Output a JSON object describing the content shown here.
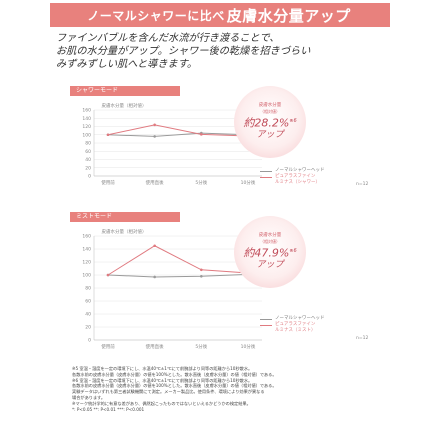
{
  "banner": {
    "prefix": "ノーマルシャワーに比べ",
    "emphasis": "皮膚水分量アップ"
  },
  "intro": {
    "lines": [
      "ファインバブルを含んだ水流が行き渡ることで、",
      "お肌の水分量がアップ。シャワー後の乾燥を招きづらい",
      "みずみずしい肌へと導きます。"
    ]
  },
  "sections": [
    {
      "tag": "シャワーモード",
      "badge": {
        "line1": "皮膚水分量",
        "line2": "（相対値）",
        "percent": "約28.2%",
        "mark": "※6",
        "suffix": "アップ"
      },
      "legend": [
        "ノーマルシャワーヘッド",
        "ピュアラスファイン",
        "ルミナス（シャワー）"
      ],
      "n_label": "n=12"
    },
    {
      "tag": "ミストモード",
      "badge": {
        "line1": "皮膚水分量",
        "line2": "（相対値）",
        "percent": "約47.9%",
        "mark": "※6",
        "suffix": "アップ"
      },
      "legend": [
        "ノーマルシャワーヘッド",
        "ピュアラスファイン",
        "ルミナス（ミスト）"
      ],
      "n_label": "n=12"
    }
  ],
  "chart_data": [
    {
      "type": "line",
      "title": "",
      "ylabel": "皮膚水分量（相対値）",
      "categories": [
        "使用前",
        "使用直後",
        "5分後",
        "10分後"
      ],
      "ylim": [
        0,
        160
      ],
      "yticks": [
        0,
        20,
        40,
        60,
        80,
        100,
        120,
        140,
        160
      ],
      "series": [
        {
          "name": "ノーマルシャワーヘッド",
          "values": [
            100,
            96,
            104,
            100
          ],
          "color": "#9a9a9a"
        },
        {
          "name": "ピュアラスファイン ルミナス（シャワー）",
          "values": [
            100,
            124,
            101,
            97
          ],
          "color": "#e07a80"
        }
      ]
    },
    {
      "type": "line",
      "title": "",
      "ylabel": "皮膚水分量（相対値）",
      "categories": [
        "使用前",
        "使用直後",
        "5分後",
        "10分後"
      ],
      "ylim": [
        0,
        160
      ],
      "yticks": [
        0,
        20,
        40,
        60,
        80,
        100,
        120,
        140,
        160
      ],
      "series": [
        {
          "name": "ノーマルシャワーヘッド",
          "values": [
            100,
            97,
            98,
            101
          ],
          "color": "#9a9a9a"
        },
        {
          "name": "ピュアラスファイン ルミナス（ミスト）",
          "values": [
            100,
            145,
            108,
            103
          ],
          "color": "#e07a80"
        }
      ]
    }
  ],
  "notes": [
    "※5 室温・湿度を一定の環境下にし、水温40℃±1℃にて前腕部より同等の距離から10秒散水。",
    "各散水前の皮膚水分量（皮膚水分量）の値を100%とした。散水直後（皮膚水分量）の値（相対値）である。",
    "※6 室温・湿度を一定の環境下にし、水温40℃±1℃にて前腕部より同等の距離から10秒散水。",
    "各散水前の皮膚水分量（皮膚水分量）の値を100%とした。散水直後（皮膚水分量）の値（相対値）である。",
    "実験データはいずれも第三者試験機関にて測定。メーカー製品比。使用条件、環境により効果が異なる",
    "場合があります。",
    "※マーク統計学的に有意な差があり、偶然起こったものではないといえるかどうかの検定結果。",
    "*: P<0.05  **: P<0.01  ***: P<0.001"
  ]
}
